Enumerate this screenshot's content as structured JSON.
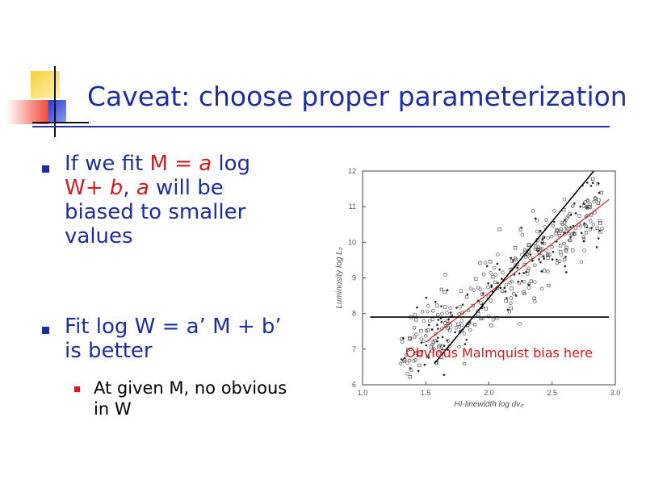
{
  "slide": {
    "title": "Caveat: choose proper parameterization",
    "bullet1": {
      "pre": "If we fit ",
      "m_eq": "M = ",
      "a1": "a",
      "log": " log",
      "w_plus": "W+ ",
      "b": "b",
      "comma": ", ",
      "a2": "a",
      "rest1": " will be",
      "rest2": "biased to smaller",
      "rest3": "values"
    },
    "bullet2": {
      "line1": "Fit log W = a’ M + b’",
      "line2": "is better"
    },
    "sub_bullet": {
      "line1": "At given M, no obvious",
      "line2": "in W"
    },
    "annotation": "Obvious Malmquist bias here"
  },
  "colors": {
    "title": "#1f2e9e",
    "accent": "#d01c1c",
    "deco_yellow": "#f7d23a",
    "deco_red": "#f24a3a",
    "deco_blue": "#3a4dd8"
  },
  "chart_data": {
    "type": "scatter",
    "xlabel": "HI-linewidth log dv₀",
    "ylabel": "Luminosity log L₂",
    "xlim": [
      1.0,
      3.0
    ],
    "ylim": [
      6,
      12
    ],
    "xticks": [
      "1.0",
      "1.5",
      "2.0",
      "2.5",
      "3.0"
    ],
    "yticks": [
      "6",
      "7",
      "8",
      "9",
      "10",
      "11",
      "12"
    ],
    "lines": [
      {
        "name": "",
        "color": "#d01c1c",
        "x": [
          1.5,
          2.95
        ],
        "y": [
          7.2,
          11.2
        ]
      },
      {
        "name": "",
        "color": "#000000",
        "x": [
          1.57,
          2.83
        ],
        "y": [
          6.6,
          12.0
        ]
      },
      {
        "name": "",
        "color": "#000000",
        "x": [
          1.06,
          2.95
        ],
        "y": [
          7.9,
          7.9
        ]
      }
    ]
  }
}
